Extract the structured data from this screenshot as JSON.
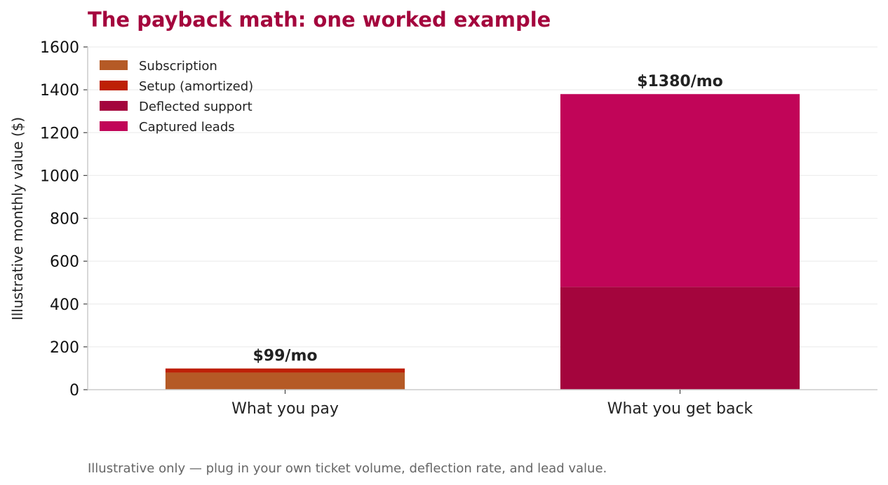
{
  "chart_data": {
    "type": "bar",
    "stacked": true,
    "title": "The payback math: one worked example",
    "ylabel": "Illustrative monthly value ($)",
    "xlabel": "",
    "ylim": [
      0,
      1600
    ],
    "yticks": [
      0,
      200,
      400,
      600,
      800,
      1000,
      1200,
      1400,
      1600
    ],
    "grid": "horizontal",
    "legend_position": "top-left",
    "categories": [
      "What you pay",
      "What you get back"
    ],
    "series": [
      {
        "name": "Subscription",
        "color": "#b55a26",
        "values": [
          80,
          0
        ]
      },
      {
        "name": "Setup (amortized)",
        "color": "#be2006",
        "values": [
          19,
          0
        ]
      },
      {
        "name": "Deflected support",
        "color": "#a4053d",
        "values": [
          0,
          480
        ]
      },
      {
        "name": "Captured leads",
        "color": "#c10558",
        "values": [
          0,
          900
        ]
      }
    ],
    "totals_labels": [
      "$99/mo",
      "$1380/mo"
    ],
    "footnote": "Illustrative only — plug in your own ticket volume, deflection rate, and lead value."
  }
}
